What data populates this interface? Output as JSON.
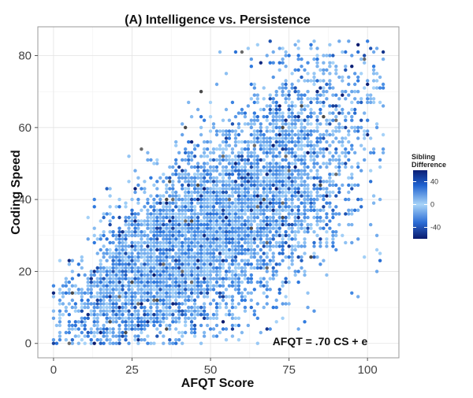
{
  "chart_data": {
    "type": "scatter",
    "title": "(A) Intelligence vs. Persistence",
    "xlabel": "AFQT Score",
    "ylabel": "Coding Speed",
    "xlim": [
      -5,
      110
    ],
    "ylim": [
      -4,
      88
    ],
    "xticks": [
      0,
      25,
      50,
      75,
      100
    ],
    "yticks": [
      0,
      20,
      40,
      60,
      80
    ],
    "grid": true,
    "annotation": "AFQT = .70 CS + e",
    "annotation_position": {
      "x": 84.5,
      "y": 1.5
    },
    "legend": {
      "title_line1": "Sibling",
      "title_line2": "Difference",
      "placement": "right",
      "ticks": [
        40,
        0,
        -40
      ],
      "tick_labels": [
        "40",
        "0",
        "-40"
      ],
      "range": [
        -60,
        60
      ],
      "colors": {
        "low": "#0a1a6e",
        "mid": "#4da6f5",
        "high": "#0b1f75",
        "light": "#a8d4f8"
      }
    },
    "point_count": 6800,
    "data_trend": {
      "x_range": [
        0,
        105
      ],
      "y_range": [
        0,
        84
      ],
      "fit": "AFQT = .70 CS + e"
    },
    "sample_points": [
      [
        0,
        0
      ],
      [
        5,
        0
      ],
      [
        9,
        1
      ],
      [
        13,
        2
      ],
      [
        16,
        4
      ],
      [
        18,
        43
      ],
      [
        20,
        18
      ],
      [
        22,
        10
      ],
      [
        25,
        35
      ],
      [
        28,
        15
      ],
      [
        31,
        51
      ],
      [
        35,
        47
      ],
      [
        38,
        8
      ],
      [
        41,
        61
      ],
      [
        44,
        30
      ],
      [
        47,
        9
      ],
      [
        50,
        56
      ],
      [
        52,
        72
      ],
      [
        55,
        38
      ],
      [
        58,
        20
      ],
      [
        60,
        81
      ],
      [
        62,
        42
      ],
      [
        65,
        0
      ],
      [
        68,
        53
      ],
      [
        70,
        78
      ],
      [
        73,
        62
      ],
      [
        75,
        33
      ],
      [
        78,
        84
      ],
      [
        80,
        6
      ],
      [
        83,
        50
      ],
      [
        86,
        71
      ],
      [
        88,
        83
      ],
      [
        90,
        38
      ],
      [
        93,
        60
      ],
      [
        95,
        77
      ],
      [
        97,
        13
      ],
      [
        100,
        84
      ],
      [
        102,
        67
      ],
      [
        104,
        74
      ],
      [
        104,
        23
      ]
    ]
  }
}
